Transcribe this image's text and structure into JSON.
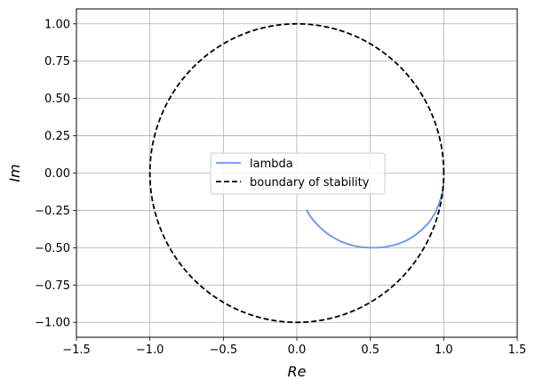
{
  "chart_data": {
    "type": "line",
    "xlabel": "Re",
    "ylabel": "Im",
    "xlim": [
      -1.5,
      1.5
    ],
    "ylim": [
      -1.1,
      1.1
    ],
    "grid": true,
    "legend_placement": "center",
    "x_ticks": [
      -1.5,
      -1.0,
      -0.5,
      0.0,
      0.5,
      1.0,
      1.5
    ],
    "x_tick_labels": [
      "−1.5",
      "−1.0",
      "−0.5",
      "0.0",
      "0.5",
      "1.0",
      "1.5"
    ],
    "y_ticks": [
      1.0,
      0.75,
      0.5,
      0.25,
      0.0,
      -0.25,
      -0.5,
      -0.75,
      -1.0
    ],
    "y_tick_labels": [
      "1.00",
      "0.75",
      "0.50",
      "0.25",
      "0.00",
      "−0.25",
      "−0.50",
      "−0.75",
      "−1.00"
    ],
    "series": [
      {
        "name": "lambda",
        "color": "#6495ed",
        "style": "solid",
        "x": [
          1.0,
          0.998,
          0.99,
          0.97,
          0.94,
          0.9,
          0.85,
          0.8,
          0.75,
          0.7,
          0.65,
          0.6,
          0.55,
          0.5,
          0.45,
          0.4,
          0.35,
          0.3,
          0.25,
          0.2,
          0.16,
          0.12,
          0.09,
          0.065
        ],
        "y": [
          -0.05,
          -0.08,
          -0.13,
          -0.2,
          -0.27,
          -0.33,
          -0.38,
          -0.42,
          -0.45,
          -0.47,
          -0.485,
          -0.495,
          -0.5,
          -0.5,
          -0.497,
          -0.49,
          -0.477,
          -0.458,
          -0.433,
          -0.4,
          -0.366,
          -0.325,
          -0.288,
          -0.245
        ]
      },
      {
        "name": "boundary of stability",
        "color": "#000000",
        "style": "dashed",
        "shape": "unit circle"
      }
    ]
  }
}
